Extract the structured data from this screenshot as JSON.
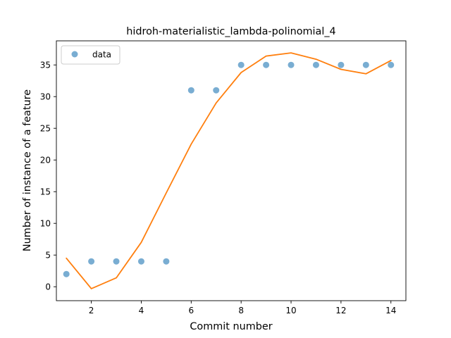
{
  "chart_data": {
    "type": "scatter",
    "title": "hidroh-materialistic_lambda-polinomial_4",
    "xlabel": "Commit number",
    "ylabel": "Number of instance of a feature",
    "xlim": [
      0.6,
      14.6
    ],
    "ylim": [
      -2.2,
      38.8
    ],
    "xticks": [
      2,
      4,
      6,
      8,
      10,
      12,
      14
    ],
    "yticks": [
      0,
      5,
      10,
      15,
      20,
      25,
      30,
      35
    ],
    "legend_position": "top-left",
    "grid": false,
    "series": [
      {
        "name": "data",
        "kind": "scatter",
        "color": "#1f77b4",
        "x": [
          1,
          2,
          3,
          4,
          5,
          6,
          7,
          8,
          9,
          10,
          11,
          12,
          13,
          14
        ],
        "y": [
          2,
          4,
          4,
          4,
          4,
          31,
          31,
          35,
          35,
          35,
          35,
          35,
          35,
          35
        ]
      },
      {
        "kind": "line",
        "color": "#ff7f0e",
        "x": [
          1,
          2,
          3,
          4,
          5,
          6,
          7,
          8,
          9,
          10,
          11,
          12,
          13,
          14
        ],
        "y": [
          4.5,
          -0.3,
          1.4,
          7.0,
          14.8,
          22.5,
          29.0,
          33.8,
          36.4,
          36.9,
          35.9,
          34.3,
          33.6,
          35.7
        ]
      }
    ]
  }
}
